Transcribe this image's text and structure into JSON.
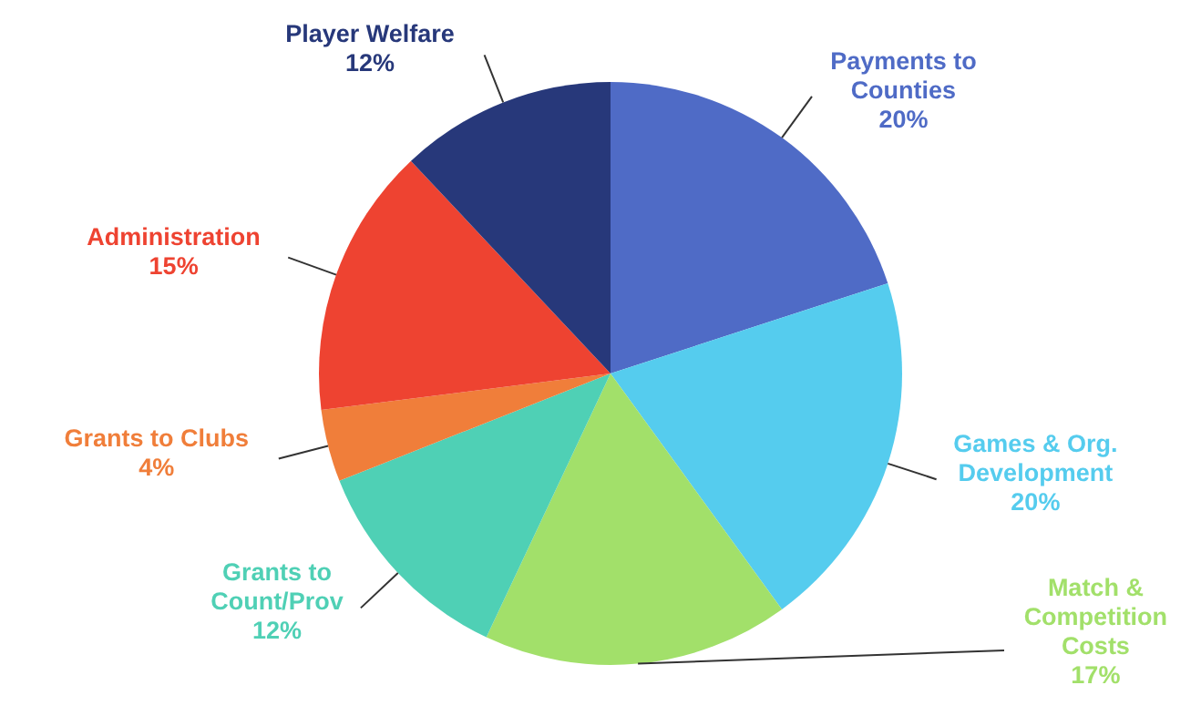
{
  "chart_data": {
    "type": "pie",
    "categories": [
      "Payments to Counties",
      "Games & Org. Development",
      "Match & Competition Costs",
      "Grants to Count/Prov",
      "Grants to Clubs",
      "Administration",
      "Player Welfare"
    ],
    "values": [
      20,
      20,
      17,
      12,
      4,
      15,
      12
    ],
    "colors": [
      "#4f6bc6",
      "#55ccee",
      "#a2e06a",
      "#4fd0b5",
      "#f07e3a",
      "#ee4331",
      "#27387a"
    ],
    "value_labels": [
      "20%",
      "20%",
      "17%",
      "12%",
      "4%",
      "15%",
      "12%"
    ],
    "legend": false
  }
}
